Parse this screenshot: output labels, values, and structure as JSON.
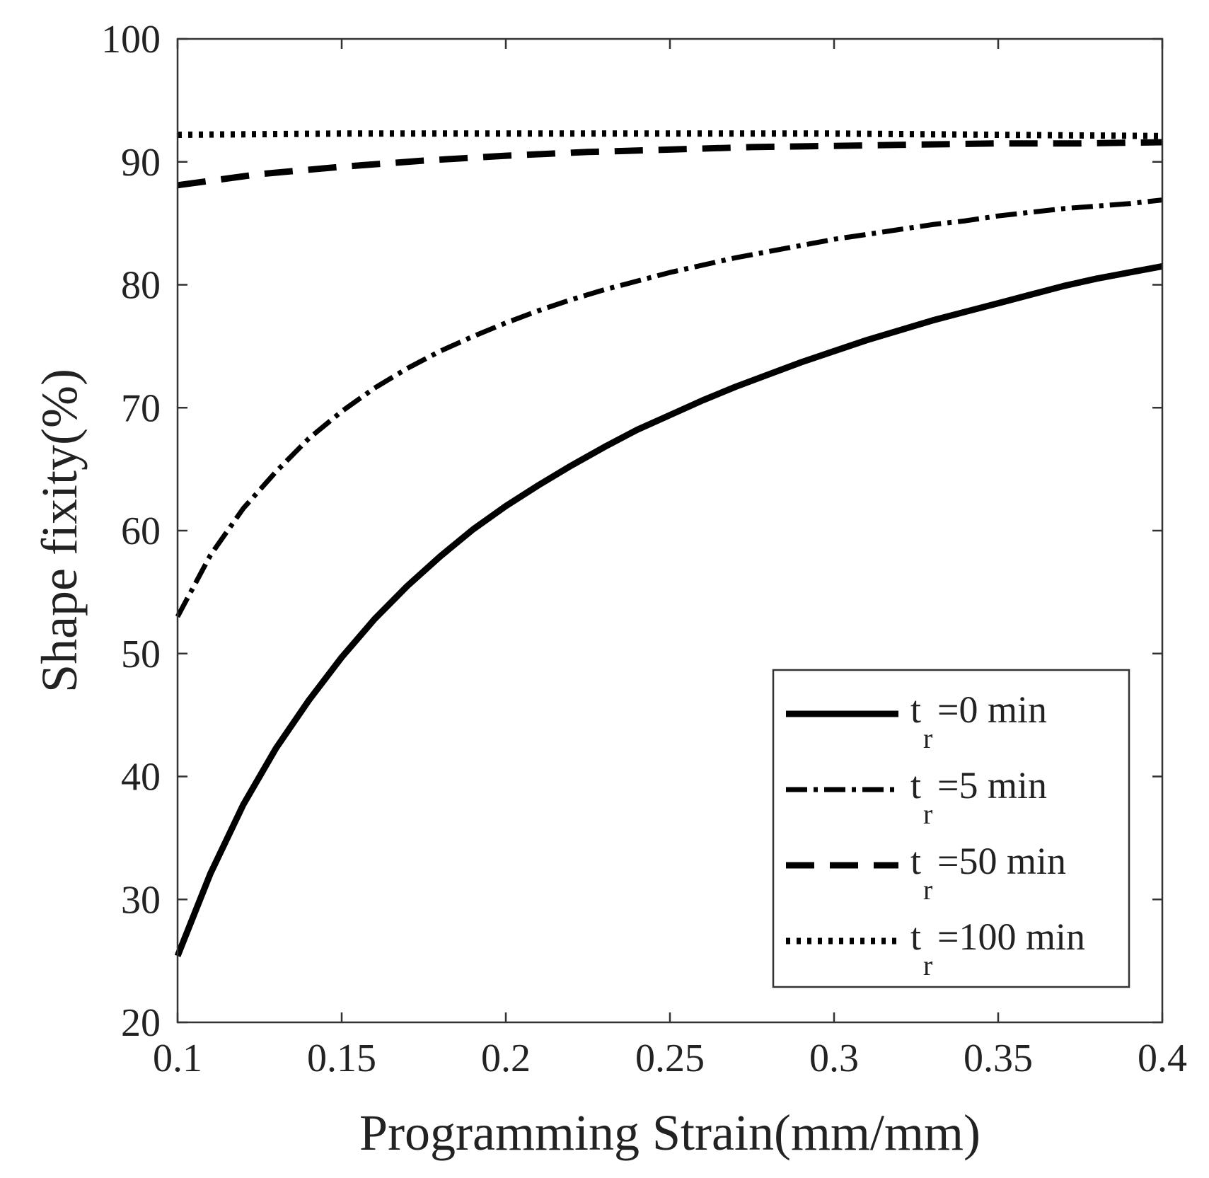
{
  "chart_data": {
    "type": "line",
    "title": "",
    "xlabel": "Programming Strain(mm/mm)",
    "ylabel": "Shape fixity(%)",
    "xlim": [
      0.1,
      0.4
    ],
    "ylim": [
      20,
      100
    ],
    "xticks": [
      0.1,
      0.15,
      0.2,
      0.25,
      0.3,
      0.35,
      0.4
    ],
    "xtick_labels": [
      "0.1",
      "0.15",
      "0.2",
      "0.25",
      "0.3",
      "0.35",
      "0.4"
    ],
    "yticks": [
      20,
      30,
      40,
      50,
      60,
      70,
      80,
      90,
      100
    ],
    "ytick_labels": [
      "20",
      "30",
      "40",
      "50",
      "60",
      "70",
      "80",
      "90",
      "100"
    ],
    "grid": false,
    "legend_position": "bottom-right",
    "series": [
      {
        "name": "t_r=0 min",
        "legend_main": "t",
        "legend_sub": "r",
        "legend_rest": "=0 min",
        "style": "solid",
        "x": [
          0.1,
          0.11,
          0.12,
          0.13,
          0.14,
          0.15,
          0.16,
          0.17,
          0.18,
          0.19,
          0.2,
          0.21,
          0.22,
          0.23,
          0.24,
          0.25,
          0.26,
          0.27,
          0.28,
          0.29,
          0.3,
          0.31,
          0.32,
          0.33,
          0.34,
          0.35,
          0.36,
          0.37,
          0.38,
          0.39,
          0.4
        ],
        "y": [
          25.4,
          32.1,
          37.7,
          42.3,
          46.2,
          49.7,
          52.8,
          55.5,
          57.9,
          60.1,
          62.0,
          63.7,
          65.3,
          66.8,
          68.2,
          69.4,
          70.6,
          71.7,
          72.7,
          73.7,
          74.6,
          75.5,
          76.3,
          77.1,
          77.8,
          78.5,
          79.2,
          79.9,
          80.5,
          81.0,
          81.5
        ]
      },
      {
        "name": "t_r=5 min",
        "legend_main": "t",
        "legend_sub": "r",
        "legend_rest": "=5 min",
        "style": "dashdot",
        "x": [
          0.1,
          0.11,
          0.12,
          0.13,
          0.14,
          0.15,
          0.16,
          0.17,
          0.18,
          0.19,
          0.2,
          0.21,
          0.22,
          0.23,
          0.24,
          0.25,
          0.26,
          0.27,
          0.28,
          0.29,
          0.3,
          0.31,
          0.32,
          0.33,
          0.34,
          0.35,
          0.36,
          0.37,
          0.38,
          0.39,
          0.4
        ],
        "y": [
          53.0,
          58.0,
          61.8,
          64.8,
          67.5,
          69.7,
          71.6,
          73.2,
          74.6,
          75.8,
          76.9,
          77.9,
          78.8,
          79.6,
          80.3,
          81.0,
          81.6,
          82.2,
          82.7,
          83.2,
          83.7,
          84.1,
          84.5,
          84.9,
          85.2,
          85.6,
          85.9,
          86.2,
          86.4,
          86.6,
          86.9
        ]
      },
      {
        "name": "t_r=50 min",
        "legend_main": "t",
        "legend_sub": "r",
        "legend_rest": "=50 min",
        "style": "dashed",
        "x": [
          0.1,
          0.125,
          0.15,
          0.175,
          0.2,
          0.225,
          0.25,
          0.275,
          0.3,
          0.325,
          0.35,
          0.375,
          0.4
        ],
        "y": [
          88.1,
          89.0,
          89.6,
          90.1,
          90.5,
          90.8,
          91.0,
          91.2,
          91.3,
          91.4,
          91.5,
          91.5,
          91.6
        ]
      },
      {
        "name": "t_r=100 min",
        "legend_main": "t",
        "legend_sub": "r",
        "legend_rest": "=100 min",
        "style": "dotted",
        "x": [
          0.1,
          0.15,
          0.2,
          0.25,
          0.3,
          0.35,
          0.4
        ],
        "y": [
          92.2,
          92.3,
          92.3,
          92.3,
          92.3,
          92.2,
          92.1
        ]
      }
    ]
  }
}
